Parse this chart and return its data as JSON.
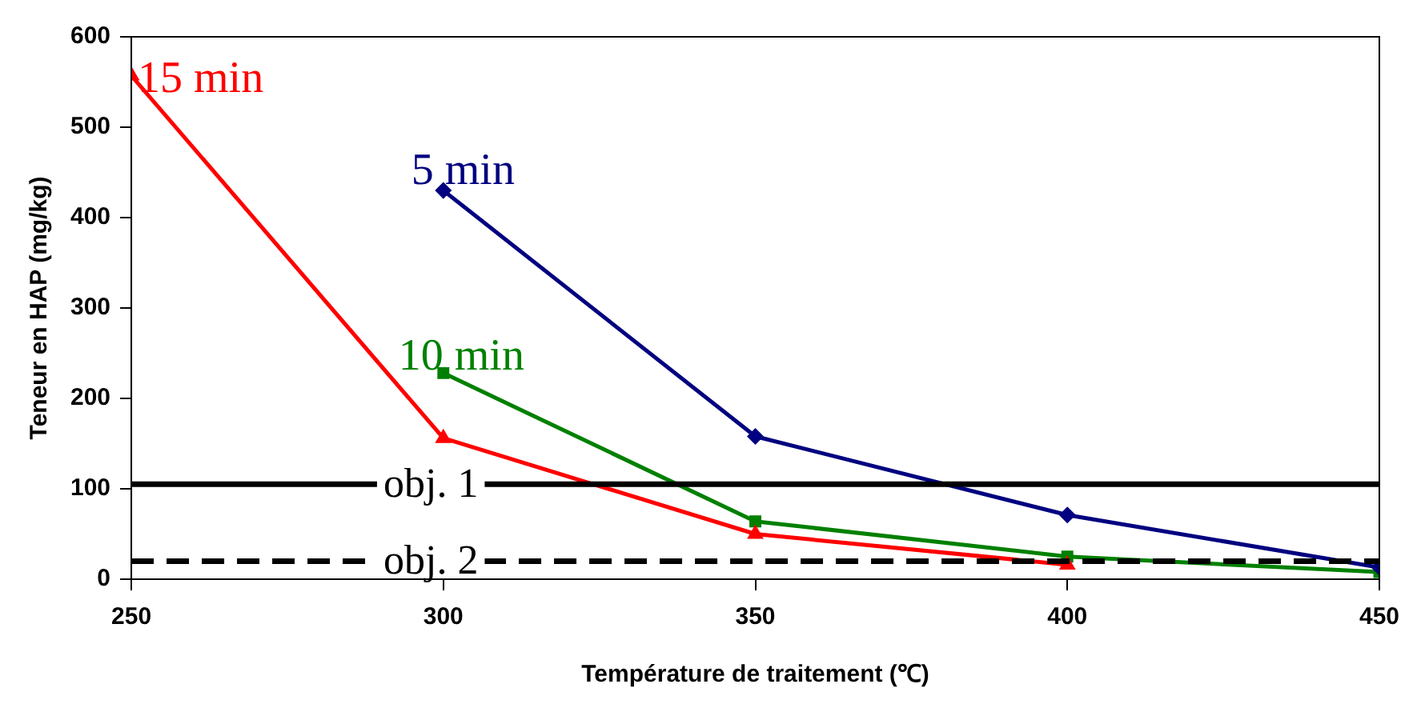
{
  "chart_data": {
    "type": "line",
    "xlabel": "Température de traitement (℃)",
    "ylabel": "Teneur en HAP (mg/kg)",
    "xlim": [
      250,
      450
    ],
    "xticks": [
      250,
      300,
      350,
      400,
      450
    ],
    "ylim": [
      0,
      600
    ],
    "yticks": [
      0,
      100,
      200,
      300,
      400,
      500,
      600
    ],
    "grid": false,
    "legend": false,
    "series": [
      {
        "name": "15 min",
        "color": "#ff0000",
        "marker": "triangle",
        "x": [
          250,
          300,
          350,
          400
        ],
        "values": [
          557,
          156,
          50,
          16
        ]
      },
      {
        "name": "5 min",
        "color": "#000080",
        "marker": "diamond",
        "x": [
          300,
          350,
          400,
          450
        ],
        "values": [
          430,
          158,
          71,
          13
        ]
      },
      {
        "name": "10 min",
        "color": "#008000",
        "marker": "square",
        "x": [
          300,
          350,
          400,
          450
        ],
        "values": [
          228,
          64,
          25,
          8
        ]
      }
    ],
    "ref_lines": [
      {
        "axis": "y",
        "value": 105,
        "label": "obj. 1",
        "color": "#000000",
        "line_style": "solid"
      },
      {
        "axis": "y",
        "value": 20,
        "label": "obj. 2",
        "color": "#000000",
        "line_style": "dashed"
      }
    ]
  }
}
